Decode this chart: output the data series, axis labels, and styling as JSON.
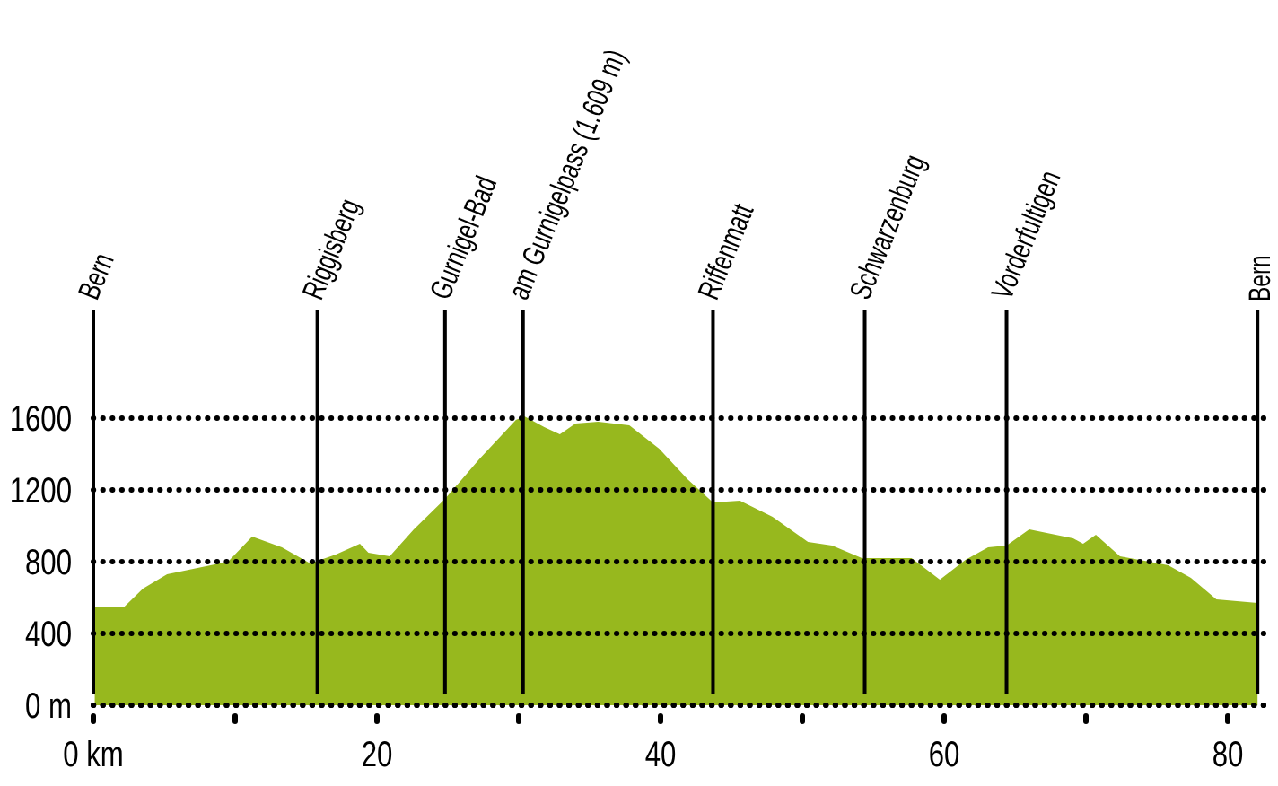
{
  "chart_data": {
    "type": "area",
    "x": [
      0.1,
      2.2,
      3.5,
      5.2,
      9.5,
      11.2,
      13.3,
      15.3,
      17.1,
      18.8,
      19.4,
      20.9,
      22.6,
      24.8,
      27.2,
      29.8,
      30.4,
      31.8,
      32.9,
      34,
      35.6,
      37.8,
      39.9,
      41.9,
      43.7,
      45.6,
      47.9,
      50.4,
      52.1,
      54.2,
      57.7,
      59.7,
      61.5,
      63.1,
      64.4,
      66,
      69.1,
      69.8,
      70.7,
      72.4,
      75.8,
      77.4,
      79.2,
      82.1
    ],
    "series": [
      {
        "color": "#97b81e",
        "values": [
          550,
          550,
          650,
          730,
          800,
          940,
          880,
          790,
          840,
          900,
          850,
          830,
          980,
          1150,
          1370,
          1590,
          1610,
          1550,
          1510,
          1570,
          1580,
          1560,
          1430,
          1260,
          1130,
          1140,
          1050,
          910,
          890,
          820,
          820,
          700,
          810,
          880,
          890,
          980,
          930,
          900,
          950,
          830,
          780,
          710,
          590,
          570
        ]
      }
    ],
    "xlim": [
      0,
      83
    ],
    "ylim": [
      0,
      2200
    ],
    "xticks": [
      {
        "value": 0,
        "label": "0 km"
      },
      {
        "value": 10,
        "label": null
      },
      20,
      {
        "value": 30,
        "label": null
      },
      40,
      {
        "value": 50,
        "label": null
      },
      60,
      {
        "value": 70,
        "label": null
      },
      80
    ],
    "yticks": [
      {
        "value": 0,
        "label": "0 m"
      },
      400,
      800,
      1200,
      1600
    ],
    "grid": "y",
    "line_style": "dotted",
    "ref_lines": [
      {
        "axis": "x",
        "value": 0,
        "label": "Bern"
      },
      {
        "axis": "x",
        "value": 15.8,
        "label": "Riggisberg"
      },
      {
        "axis": "x",
        "value": 24.8,
        "label": "Gurnigel-Bad"
      },
      {
        "axis": "x",
        "value": 30.3,
        "label": "am Gurnigelpass (1.609 m)"
      },
      {
        "axis": "x",
        "value": 43.7,
        "label": "Riffenmatt"
      },
      {
        "axis": "x",
        "value": 54.4,
        "label": "Schwarzenburg"
      },
      {
        "axis": "x",
        "value": 64.4,
        "label": "Vorderfultigen"
      },
      {
        "axis": "x",
        "value": 82.1,
        "label": "Bern"
      }
    ]
  }
}
